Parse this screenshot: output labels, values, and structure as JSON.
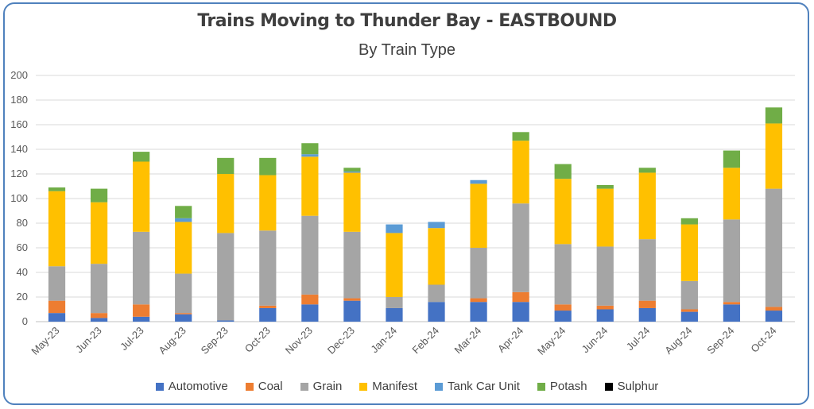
{
  "chart_data": {
    "type": "bar",
    "stacked": true,
    "title": "Trains Moving to Thunder Bay - EASTBOUND",
    "subtitle": "By Train Type",
    "xlabel": "",
    "ylabel": "",
    "ylim": [
      0,
      200
    ],
    "yticks": [
      "0",
      "20",
      "40",
      "60",
      "80",
      "100",
      "120",
      "140",
      "160",
      "180",
      "200"
    ],
    "grid": true,
    "legend_position": "bottom",
    "categories": [
      "May-23",
      "Jun-23",
      "Jul-23",
      "Aug-23",
      "Sep-23",
      "Oct-23",
      "Nov-23",
      "Dec-23",
      "Jan-24",
      "Feb-24",
      "Mar-24",
      "Apr-24",
      "May-24",
      "Jun-24",
      "Jul-24",
      "Aug-24",
      "Sep-24",
      "Oct-24"
    ],
    "series": [
      {
        "name": "Automotive",
        "color": "#4472c4",
        "values": [
          7,
          3,
          4,
          6,
          1,
          11,
          14,
          17,
          11,
          16,
          16,
          16,
          9,
          10,
          11,
          8,
          14,
          9
        ]
      },
      {
        "name": "Coal",
        "color": "#ed7d31",
        "values": [
          10,
          4,
          10,
          1,
          0,
          2,
          8,
          2,
          0,
          0,
          3,
          8,
          5,
          3,
          6,
          2,
          2,
          3
        ]
      },
      {
        "name": "Grain",
        "color": "#a5a5a5",
        "values": [
          28,
          40,
          59,
          32,
          71,
          61,
          64,
          54,
          9,
          14,
          41,
          72,
          49,
          48,
          50,
          23,
          67,
          96
        ]
      },
      {
        "name": "Manifest",
        "color": "#ffc000",
        "values": [
          61,
          50,
          57,
          42,
          48,
          45,
          48,
          48,
          52,
          46,
          52,
          51,
          53,
          47,
          54,
          46,
          42,
          53
        ]
      },
      {
        "name": "Tank Car Unit",
        "color": "#5b9bd5",
        "values": [
          0,
          0,
          0,
          3,
          0,
          0,
          2,
          1,
          7,
          5,
          3,
          0,
          0,
          0,
          0,
          0,
          0,
          0
        ]
      },
      {
        "name": "Potash",
        "color": "#70ad47",
        "values": [
          3,
          11,
          8,
          10,
          13,
          14,
          9,
          3,
          0,
          0,
          0,
          7,
          12,
          3,
          4,
          5,
          14,
          13
        ]
      },
      {
        "name": "Sulphur",
        "color": "#000000",
        "values": [
          0,
          0,
          0,
          0,
          0,
          0,
          0,
          0,
          0,
          0,
          0,
          0,
          0,
          0,
          0,
          0,
          0,
          0
        ]
      }
    ]
  }
}
